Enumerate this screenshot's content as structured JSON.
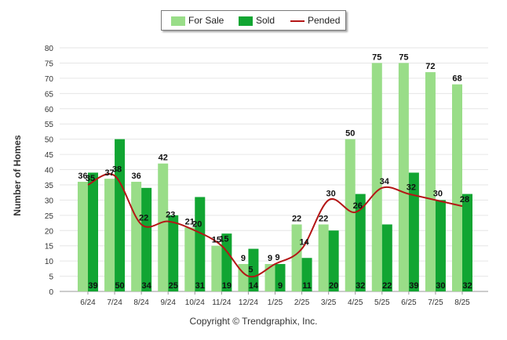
{
  "legend": {
    "for_sale_label": "For Sale",
    "sold_label": "Sold",
    "pended_label": "Pended"
  },
  "copyright": "Copyright © Trendgraphix, Inc.",
  "chart_data": {
    "type": "bar",
    "ylabel": "Number of Homes",
    "ylim": [
      0,
      80
    ],
    "ytick_step": 5,
    "grid": true,
    "legend_position": "top-center",
    "categories": [
      "6/24",
      "7/24",
      "8/24",
      "9/24",
      "10/24",
      "11/24",
      "12/24",
      "1/25",
      "2/25",
      "3/25",
      "4/25",
      "5/25",
      "6/25",
      "7/25",
      "8/25"
    ],
    "series": [
      {
        "name": "For Sale",
        "type": "bar",
        "color": "#99dd88",
        "values": [
          36,
          37,
          36,
          42,
          21,
          15,
          9,
          9,
          22,
          22,
          50,
          75,
          75,
          72,
          68
        ]
      },
      {
        "name": "Sold",
        "type": "bar",
        "color": "#11a532",
        "values": [
          39,
          50,
          34,
          25,
          31,
          19,
          14,
          9,
          11,
          20,
          32,
          22,
          39,
          30,
          32
        ]
      },
      {
        "name": "Pended",
        "type": "line",
        "color": "#b41616",
        "values": [
          35,
          38,
          22,
          23,
          20,
          15,
          5,
          9,
          14,
          30,
          26,
          34,
          32,
          30,
          28
        ]
      }
    ]
  }
}
